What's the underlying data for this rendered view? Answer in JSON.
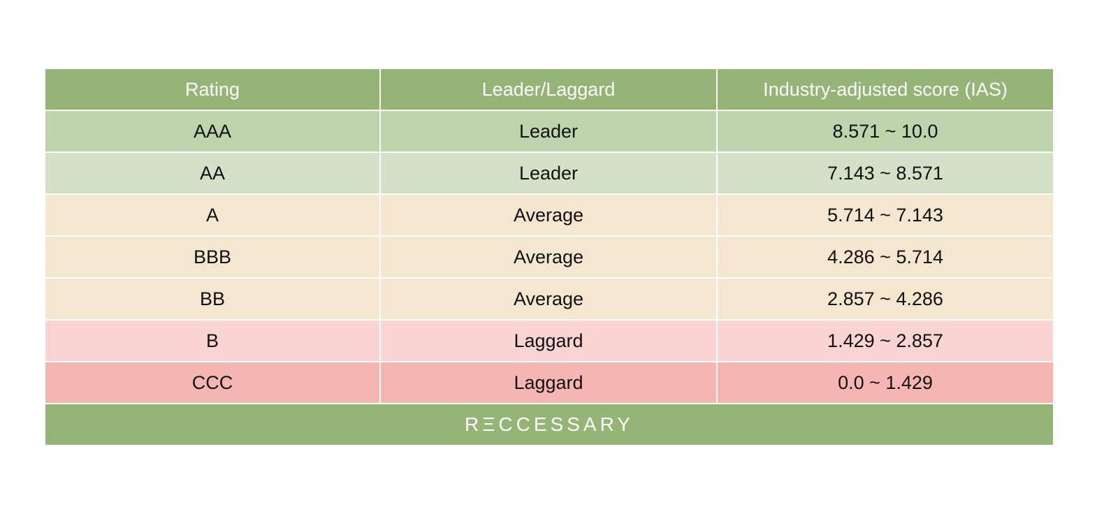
{
  "table": {
    "headers": [
      "Rating",
      "Leader/Laggard",
      "Industry-adjusted score (IAS)"
    ],
    "rows": [
      {
        "rating": "AAA",
        "category": "Leader",
        "score": "8.571 ~ 10.0"
      },
      {
        "rating": "AA",
        "category": "Leader",
        "score": "7.143 ~ 8.571"
      },
      {
        "rating": "A",
        "category": "Average",
        "score": "5.714 ~ 7.143"
      },
      {
        "rating": "BBB",
        "category": "Average",
        "score": "4.286 ~ 5.714"
      },
      {
        "rating": "BB",
        "category": "Average",
        "score": "2.857 ~ 4.286"
      },
      {
        "rating": "B",
        "category": "Laggard",
        "score": "1.429 ~ 2.857"
      },
      {
        "rating": "CCC",
        "category": "Laggard",
        "score": "0.0 ~ 1.429"
      }
    ]
  },
  "footer": {
    "brand": "RΞCCESSARY"
  },
  "colors": {
    "header_green": "#94b576",
    "leader_dark": "#bdd4ad",
    "leader_light": "#d3e1c8",
    "average": "#f5e6d0",
    "laggard_light": "#f9d4d2",
    "laggard_dark": "#f5b6b3"
  }
}
